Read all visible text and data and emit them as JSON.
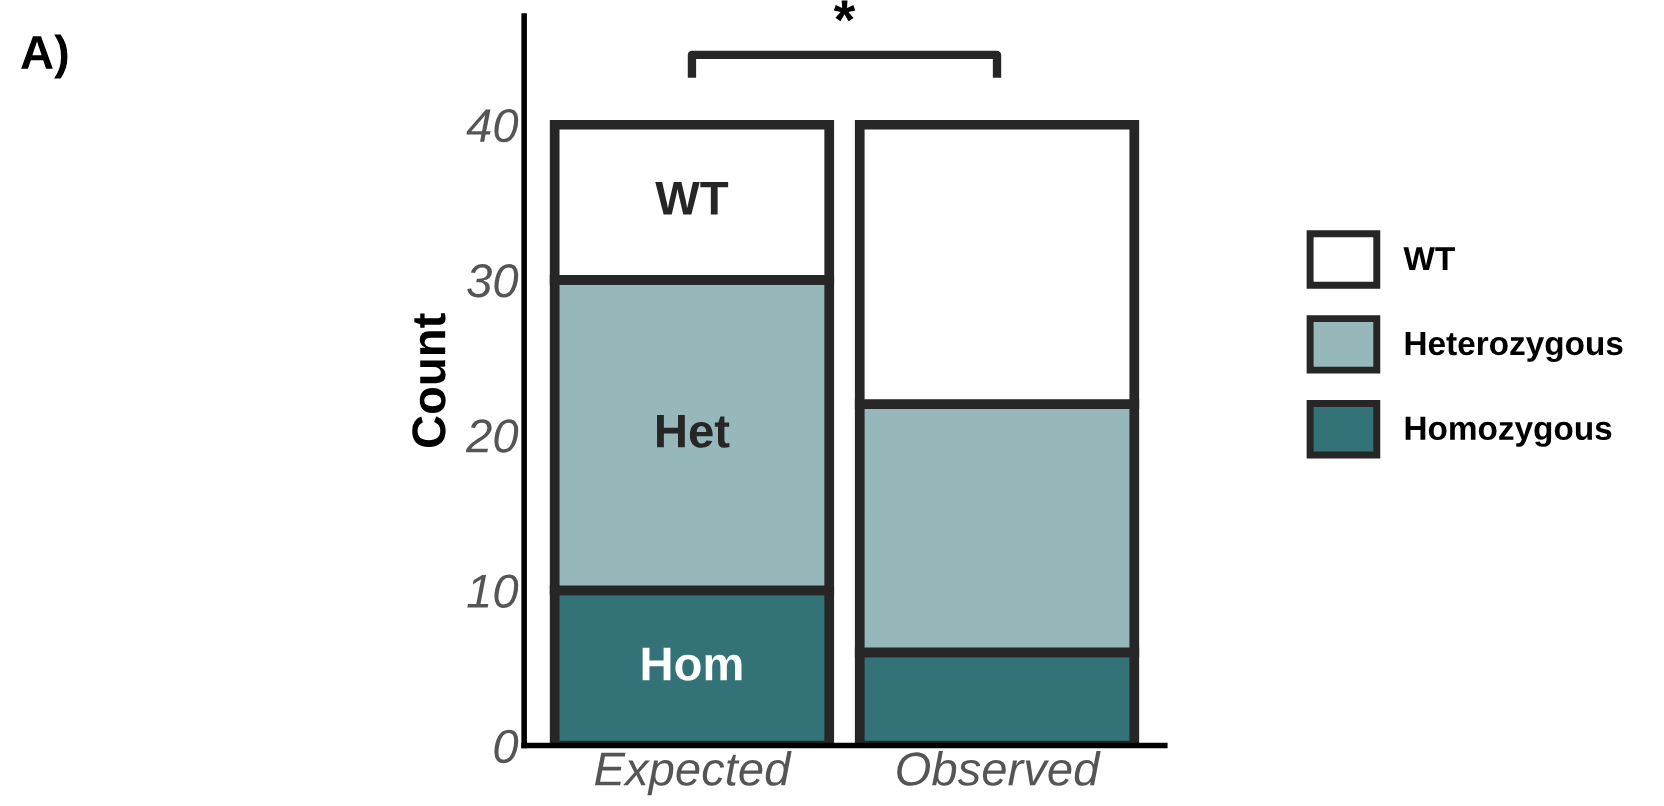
{
  "chart_data": {
    "type": "bar",
    "stacked": true,
    "ylabel": "Count",
    "categories": [
      "Expected",
      "Observed"
    ],
    "series": [
      {
        "name": "Homozygous",
        "color": "#337378",
        "values": [
          10,
          6
        ],
        "value_labels": [
          "Hom",
          null
        ]
      },
      {
        "name": "Heterozygous",
        "color": "#97b8bb",
        "values": [
          20,
          16
        ],
        "value_labels": [
          "Het",
          null
        ]
      },
      {
        "name": "WT",
        "color": "#ffffff",
        "values": [
          10,
          18
        ],
        "value_labels": [
          "WT",
          null
        ]
      }
    ],
    "ylim": [
      0,
      47
    ],
    "yticks": [
      0,
      10,
      20,
      30,
      40
    ],
    "grid": false,
    "legend": "right",
    "annotations": [
      "A)",
      "*"
    ]
  }
}
